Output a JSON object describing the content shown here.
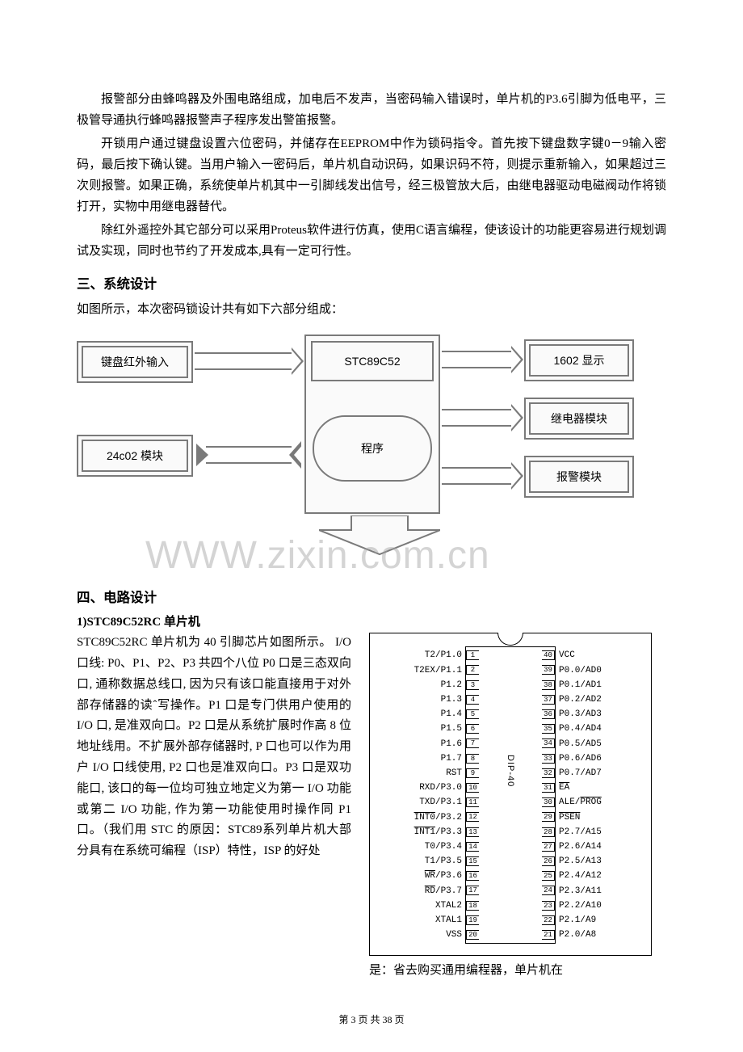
{
  "paragraphs": {
    "p1": "报警部分由蜂鸣器及外围电路组成，加电后不发声，当密码输入错误时，单片机的P3.6引脚为低电平，三极管导通执行蜂鸣器报警声子程序发出警笛报警。",
    "p2": "开锁用户通过键盘设置六位密码，并储存在EEPROM中作为锁码指令。首先按下键盘数字键0－9输入密码，最后按下确认键。当用户输入一密码后，单片机自动识码，如果识码不符，则提示重新输入，如果超过三次则报警。如果正确，系统使单片机其中一引脚线发出信号，经三极管放大后，由继电器驱动电磁阀动作将锁打开，实物中用继电器替代。",
    "p3": "除红外遥控外其它部分可以采用Proteus软件进行仿真，使用C语言编程，使该设计的功能更容易进行规划调试及实现，同时也节约了开发成本,具有一定可行性。"
  },
  "heading3": "三、系统设计",
  "intro3": "如图所示，本次密码锁设计共有如下六部分组成：",
  "diagram": {
    "left_top": "键盘红外输入",
    "left_bottom": "24c02 模块",
    "center_top": "STC89C52",
    "center_bottom": "程序",
    "right_top": "1602 显示",
    "right_mid": "继电器模块",
    "right_bottom": "报警模块"
  },
  "watermark": "WWW.zixin.com.cn",
  "heading4": "四、电路设计",
  "subheading4": "1)STC89C52RC 单片机",
  "col_left_text": "STC89C52RC 单片机为 40 引脚芯片如图所示。 I/O 口线: P0、P1、P2、P3 共四个八位 P0 口是三态双向口, 通称数据总线口, 因为只有该口能直接用于对外部存储器的读ˆ写操作。P1 口是专门供用户使用的 I/O 口, 是准双向口。P2 口是从系统扩展时作高 8 位地址线用。不扩展外部存储器时, P 口也可以作为用户 I/O 口线使用, P2 口也是准双向口。P3 口是双功能口, 该口的每一位均可独立地定义为第一 I/O 功能或第二 I/O 功能, 作为第一功能使用时操作同 P1 口。（我们用 STC 的原因：STC89系列单片机大部分具有在系统可编程（ISP）特性，ISP 的好处",
  "col_left_tail": "是：省去购买通用编程器，单片机在",
  "chip": {
    "model": "DIP-40",
    "pins_left": [
      {
        "n": "1",
        "label": "T2/P1.0"
      },
      {
        "n": "2",
        "label": "T2EX/P1.1"
      },
      {
        "n": "3",
        "label": "P1.2"
      },
      {
        "n": "4",
        "label": "P1.3"
      },
      {
        "n": "5",
        "label": "P1.4"
      },
      {
        "n": "6",
        "label": "P1.5"
      },
      {
        "n": "7",
        "label": "P1.6"
      },
      {
        "n": "8",
        "label": "P1.7"
      },
      {
        "n": "9",
        "label": "RST"
      },
      {
        "n": "10",
        "label": "RXD/P3.0"
      },
      {
        "n": "11",
        "label": "TXD/P3.1"
      },
      {
        "n": "12",
        "label": "<span class='overline'>INT0</span>/P3.2"
      },
      {
        "n": "13",
        "label": "<span class='overline'>INT1</span>/P3.3"
      },
      {
        "n": "14",
        "label": "T0/P3.4"
      },
      {
        "n": "15",
        "label": "T1/P3.5"
      },
      {
        "n": "16",
        "label": "<span class='overline'>WR</span>/P3.6"
      },
      {
        "n": "17",
        "label": "<span class='overline'>RD</span>/P3.7"
      },
      {
        "n": "18",
        "label": "XTAL2"
      },
      {
        "n": "19",
        "label": "XTAL1"
      },
      {
        "n": "20",
        "label": "VSS"
      }
    ],
    "pins_right": [
      {
        "n": "40",
        "label": "VCC"
      },
      {
        "n": "39",
        "label": "P0.0/AD0"
      },
      {
        "n": "38",
        "label": "P0.1/AD1"
      },
      {
        "n": "37",
        "label": "P0.2/AD2"
      },
      {
        "n": "36",
        "label": "P0.3/AD3"
      },
      {
        "n": "35",
        "label": "P0.4/AD4"
      },
      {
        "n": "34",
        "label": "P0.5/AD5"
      },
      {
        "n": "33",
        "label": "P0.6/AD6"
      },
      {
        "n": "32",
        "label": "P0.7/AD7"
      },
      {
        "n": "31",
        "label": "<span class='overline'>EA</span>"
      },
      {
        "n": "30",
        "label": "ALE/<span class='overline'>PROG</span>"
      },
      {
        "n": "29",
        "label": "<span class='overline'>PSEN</span>"
      },
      {
        "n": "28",
        "label": "P2.7/A15"
      },
      {
        "n": "27",
        "label": "P2.6/A14"
      },
      {
        "n": "26",
        "label": "P2.5/A13"
      },
      {
        "n": "25",
        "label": "P2.4/A12"
      },
      {
        "n": "24",
        "label": "P2.3/A11"
      },
      {
        "n": "23",
        "label": "P2.2/A10"
      },
      {
        "n": "22",
        "label": "P2.1/A9"
      },
      {
        "n": "21",
        "label": "P2.0/A8"
      }
    ]
  },
  "page_num": "第 3 页 共 38 页"
}
